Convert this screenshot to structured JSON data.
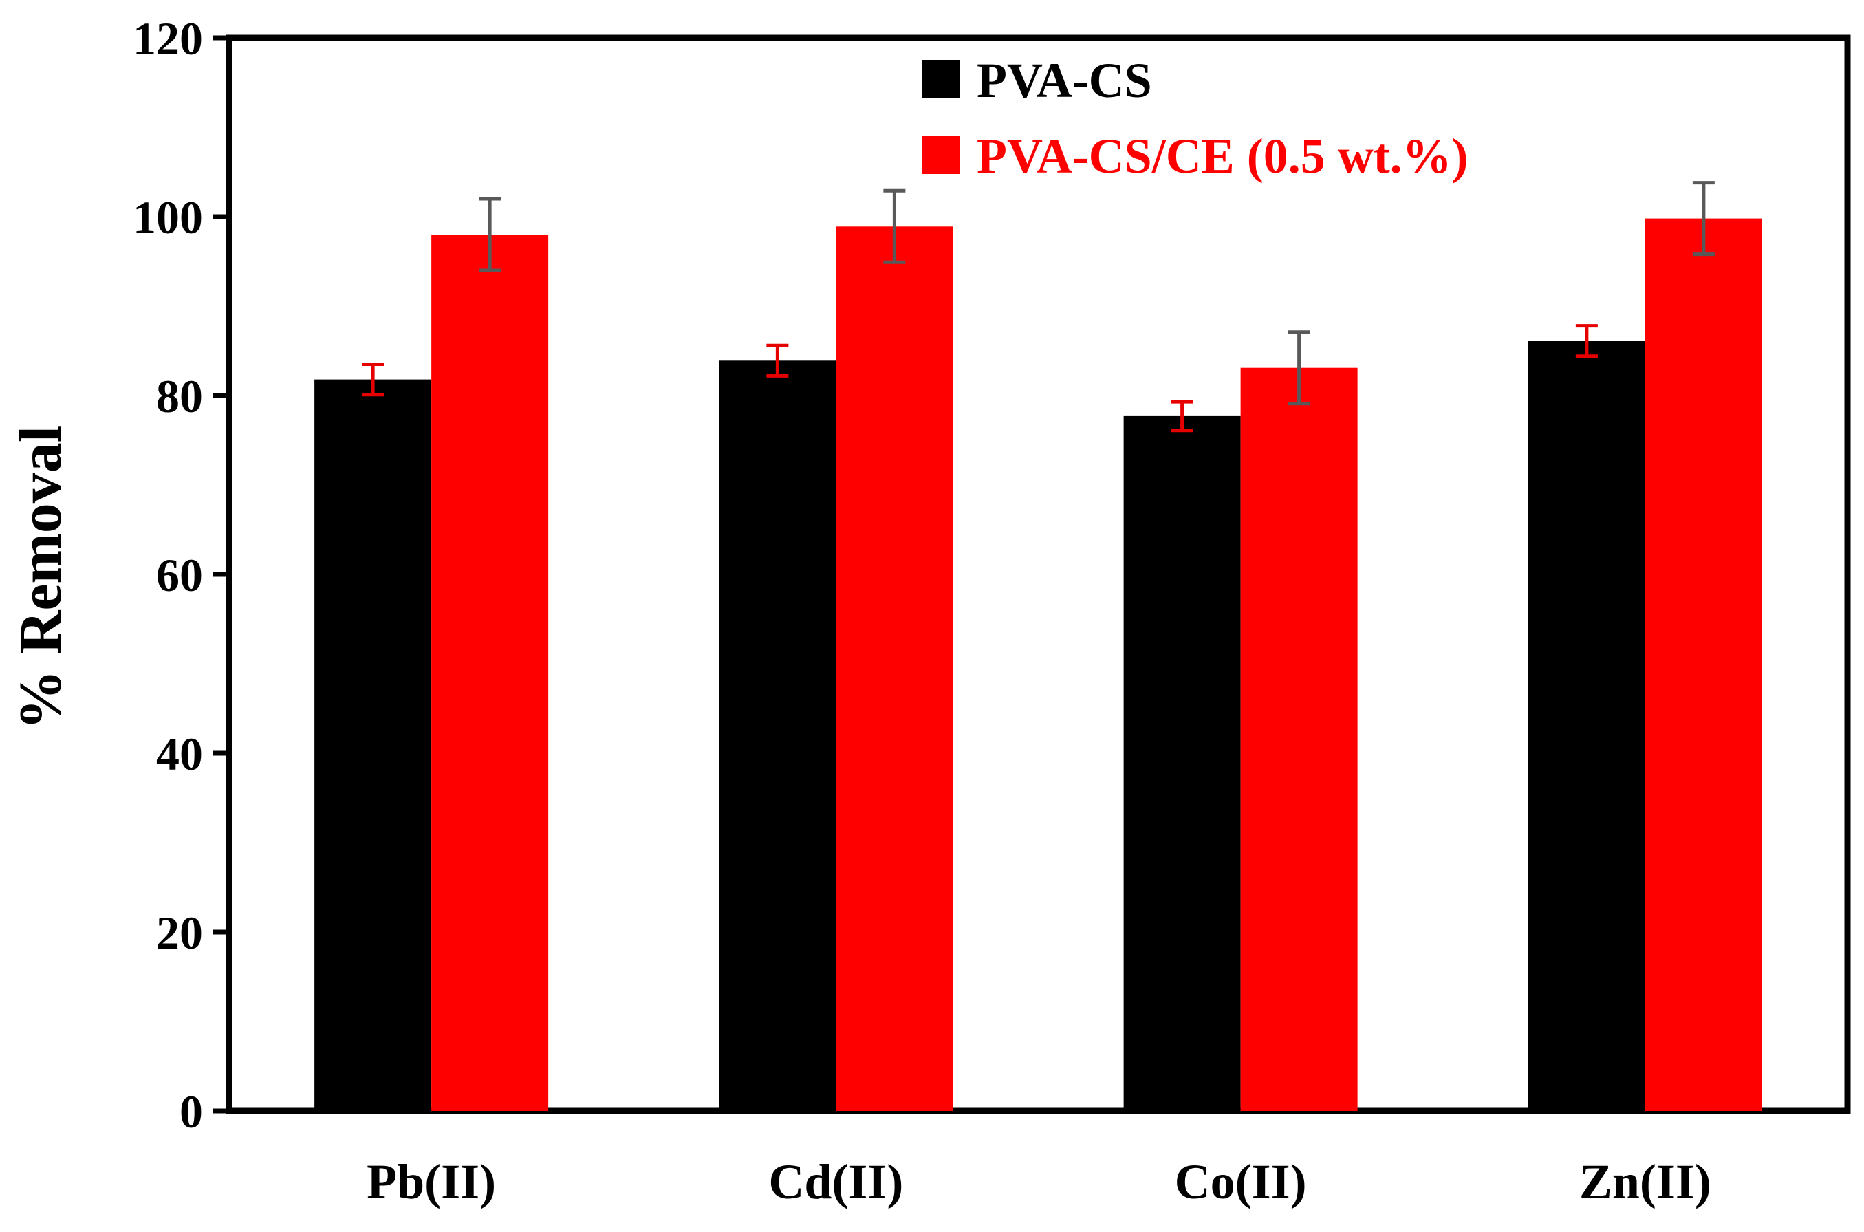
{
  "chart_data": {
    "type": "bar",
    "title": "",
    "xlabel": "",
    "ylabel": "% Removal",
    "ylim": [
      0,
      120
    ],
    "yticks": [
      0,
      20,
      40,
      60,
      80,
      100,
      120
    ],
    "categories": [
      "Pb(II)",
      "Cd(II)",
      "Co(II)",
      "Zn(II)"
    ],
    "series": [
      {
        "name": "PVA-CS",
        "color": "#000000",
        "error_color": "#e60000",
        "values": [
          81.8,
          83.9,
          77.7,
          86.1
        ],
        "errors": [
          1.7,
          1.7,
          1.6,
          1.7
        ]
      },
      {
        "name": "PVA-CS/CE (0.5 wt.%)",
        "color": "#ff0000",
        "error_color": "#595959",
        "values": [
          98.0,
          98.9,
          83.1,
          99.8
        ],
        "errors": [
          4.0,
          4.0,
          4.0,
          4.0
        ]
      }
    ],
    "legend": {
      "position": "top-center"
    },
    "grid": false
  }
}
